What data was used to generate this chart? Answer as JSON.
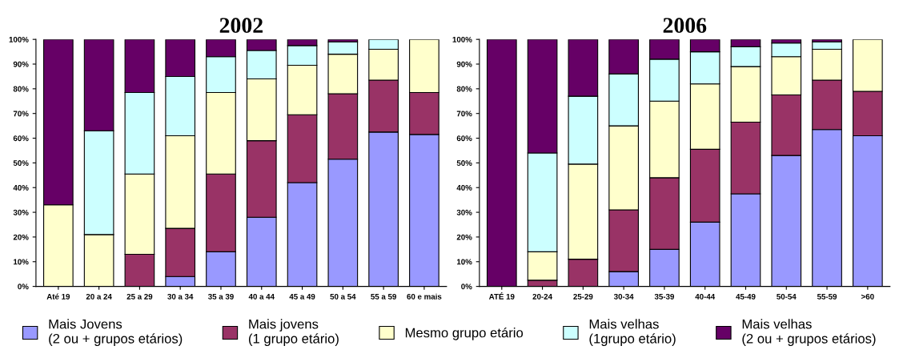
{
  "chart_data": [
    {
      "type": "bar",
      "title": "2002",
      "stacked": true,
      "legend": "bottom",
      "grid": false,
      "categories": [
        "Até 19",
        "20 a 24",
        "25 a 29",
        "30 a 34",
        "35 a 39",
        "40 a 44",
        "45 a 49",
        "50 a 54",
        "55 a 59",
        "60 e mais"
      ],
      "ylim": [
        0,
        100
      ],
      "yticks": [
        {
          "value": 0,
          "label": "0%"
        },
        {
          "value": 10,
          "label": "10%"
        },
        {
          "value": 20,
          "label": "20%"
        },
        {
          "value": 30,
          "label": "30%"
        },
        {
          "value": 40,
          "label": "40%"
        },
        {
          "value": 50,
          "label": "50%"
        },
        {
          "value": 60,
          "label": "60%"
        },
        {
          "value": 70,
          "label": "70%"
        },
        {
          "value": 80,
          "label": "80%"
        },
        {
          "value": 90,
          "label": "90%"
        },
        {
          "value": 100,
          "label": "100%"
        }
      ],
      "series": [
        {
          "name": "Mais Jovens\n(2 ou + grupos etários)",
          "color": "#9999ff",
          "values": [
            0,
            0,
            0,
            4,
            14,
            28,
            42,
            51.5,
            62.5,
            61.5
          ]
        },
        {
          "name": "Mais jovens\n(1 grupo etário)",
          "color": "#993366",
          "values": [
            0,
            0,
            13,
            19.5,
            31.5,
            31,
            27.5,
            26.5,
            21,
            17
          ]
        },
        {
          "name": "Mesmo grupo etário",
          "color": "#ffffcc",
          "values": [
            33,
            21,
            32.5,
            37.5,
            33,
            25,
            20,
            16,
            12.5,
            21.5
          ]
        },
        {
          "name": "Mais velhas\n(1grupo etário)",
          "color": "#ccffff",
          "values": [
            0,
            42,
            33,
            24,
            14.5,
            11.5,
            8,
            5,
            4,
            0
          ]
        },
        {
          "name": "Mais velhas\n(2 ou + grupos etários)",
          "color": "#660066",
          "values": [
            67,
            37,
            21.5,
            15,
            7,
            4.5,
            2.5,
            1,
            0,
            0
          ]
        }
      ]
    },
    {
      "type": "bar",
      "title": "2006",
      "stacked": true,
      "grid": false,
      "categories": [
        "ATÉ 19",
        "20-24",
        "25-29",
        "30-34",
        "35-39",
        "40-44",
        "45-49",
        "50-54",
        "55-59",
        ">60"
      ],
      "ylim": [
        0,
        100
      ],
      "yticks": [
        {
          "value": 0,
          "label": "0%"
        },
        {
          "value": 10,
          "label": "10%"
        },
        {
          "value": 20,
          "label": "20%"
        },
        {
          "value": 30,
          "label": "30%"
        },
        {
          "value": 40,
          "label": "40%"
        },
        {
          "value": 50,
          "label": "50%"
        },
        {
          "value": 60,
          "label": "60%"
        },
        {
          "value": 70,
          "label": "70%"
        },
        {
          "value": 80,
          "label": "80%"
        },
        {
          "value": 90,
          "label": "90%"
        },
        {
          "value": 100,
          "label": "100%"
        }
      ],
      "series": [
        {
          "color": "#9999ff",
          "values": [
            0,
            0,
            0,
            6,
            15,
            26,
            37.5,
            53,
            63.5,
            61
          ]
        },
        {
          "color": "#993366",
          "values": [
            0,
            2.5,
            11,
            25,
            29,
            29.5,
            29,
            24.5,
            20,
            18
          ]
        },
        {
          "color": "#ffffcc",
          "values": [
            0,
            11.5,
            38.5,
            34,
            31,
            26.5,
            22.5,
            15.5,
            12.5,
            21
          ]
        },
        {
          "color": "#ccffff",
          "values": [
            0,
            40,
            27.5,
            21,
            17,
            13,
            8,
            5.5,
            3,
            0
          ]
        },
        {
          "color": "#660066",
          "values": [
            100,
            46,
            23,
            14,
            8,
            5,
            3,
            1.5,
            1,
            0
          ]
        }
      ]
    }
  ]
}
